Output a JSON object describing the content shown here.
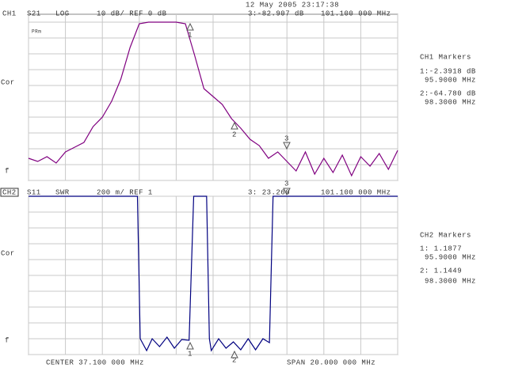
{
  "header": {
    "date": "12 May 2005 23:17:38"
  },
  "footer": {
    "center": "CENTER 37.100 000 MHz",
    "span": "SPAN 20.000 000 MHz"
  },
  "marker_symbols": [
    "1",
    "2",
    "3"
  ],
  "chart_data": [
    {
      "type": "line",
      "channel": "CH1",
      "parameter": "S21",
      "format": "LOG",
      "scale": "10 dB/ REF 0 dB",
      "active_marker": "3:-82.907 dB",
      "active_marker_freq": "101.100 000 MHz",
      "side_labels": [
        "Cor",
        "f"
      ],
      "flag": "PRm",
      "markers_title": "CH1 Markers",
      "marker_readouts": [
        [
          "1:-2.3918 dB",
          "95.9000 MHz"
        ],
        [
          "2:-64.780 dB",
          "98.3000 MHz"
        ]
      ],
      "xlim": [
        27.1,
        47.1
      ],
      "xticks": [
        27.1,
        29.1,
        31.1,
        33.1,
        35.1,
        37.1,
        39.1,
        41.1,
        43.1,
        45.1,
        47.1
      ],
      "ylim": [
        -100,
        0
      ],
      "yticks": [
        -100,
        -90,
        -80,
        -70,
        -60,
        -50,
        -40,
        -30,
        -20,
        -10,
        0
      ],
      "grid": true,
      "series": [
        {
          "color": "#800080",
          "x": [
            27.1,
            27.6,
            28.1,
            28.6,
            29.1,
            29.6,
            30.1,
            30.6,
            31.1,
            31.6,
            32.1,
            32.6,
            33.1,
            33.6,
            34.1,
            34.6,
            35.1,
            35.6,
            36.1,
            36.6,
            37.1,
            37.6,
            38.1,
            38.6,
            39.1,
            39.6,
            40.1,
            40.6,
            41.1,
            41.6,
            42.1,
            42.6,
            43.1,
            43.6,
            44.1,
            44.6,
            45.1,
            45.6,
            46.1,
            46.6,
            47.1
          ],
          "values": [
            -86,
            -88,
            -85,
            -89,
            -82,
            -79,
            -76,
            -66,
            -60,
            -50,
            -36,
            -16,
            -1,
            0,
            0,
            0,
            0,
            -1,
            -21,
            -42,
            -47,
            -52,
            -61,
            -67,
            -74,
            -78,
            -86,
            -82,
            -88,
            -94,
            -82,
            -96,
            -86,
            -95,
            -84,
            -97,
            -85,
            -91,
            -83,
            -93,
            -81
          ]
        }
      ]
    },
    {
      "type": "line",
      "channel": "CH2",
      "parameter": "S11",
      "format": "SWR",
      "scale": "200 m/ REF 1",
      "active_marker": "3: 23.260",
      "active_marker_freq": "101.100 000 MHz",
      "side_labels": [
        "Cor",
        "f"
      ],
      "markers_title": "CH2 Markers",
      "marker_readouts": [
        [
          "1: 1.1877",
          "95.9000 MHz"
        ],
        [
          "2: 1.1449",
          "98.3000 MHz"
        ]
      ],
      "xlim": [
        27.1,
        47.1
      ],
      "xticks": [
        27.1,
        29.1,
        31.1,
        33.1,
        35.1,
        37.1,
        39.1,
        41.1,
        43.1,
        45.1,
        47.1
      ],
      "ylim": [
        1,
        3
      ],
      "yticks": [
        1,
        1.2,
        1.4,
        1.6,
        1.8,
        2,
        2.2,
        2.4,
        2.6,
        2.8,
        3
      ],
      "grid": true,
      "series": [
        {
          "color": "#000080",
          "x": [
            27.1,
            33.0,
            33.15,
            33.5,
            33.8,
            34.2,
            34.6,
            35.0,
            35.4,
            35.8,
            36.05,
            36.75,
            36.9,
            37.0,
            37.4,
            37.8,
            38.2,
            38.6,
            39.0,
            39.4,
            39.8,
            40.15,
            40.35,
            47.1
          ],
          "values": [
            3,
            3,
            1.2,
            1.05,
            1.2,
            1.1,
            1.22,
            1.08,
            1.19,
            1.18,
            3,
            3,
            1.2,
            1.05,
            1.2,
            1.08,
            1.16,
            1.06,
            1.2,
            1.06,
            1.2,
            1.15,
            3,
            3
          ]
        }
      ]
    }
  ]
}
